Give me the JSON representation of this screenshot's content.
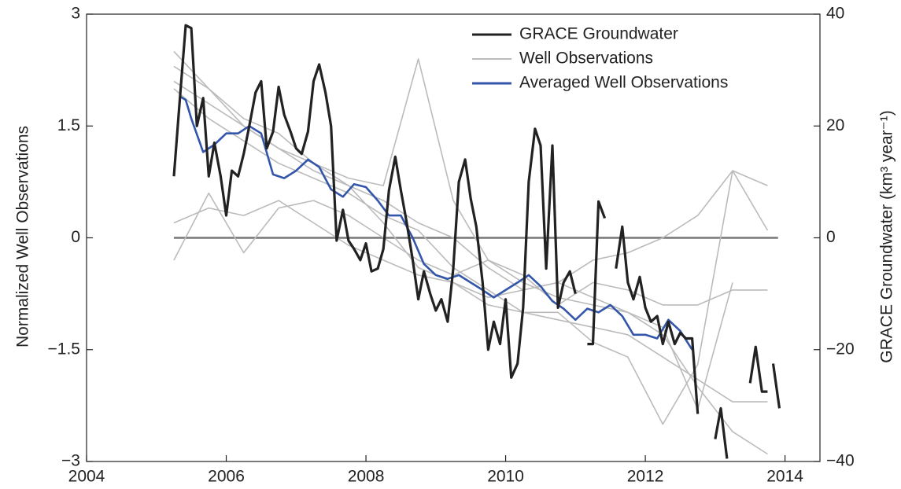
{
  "chart_data": {
    "type": "line",
    "xlim": [
      2004,
      2014.5
    ],
    "xticks": [
      2004,
      2006,
      2008,
      2010,
      2012,
      2014
    ],
    "ylim": [
      -3,
      3
    ],
    "yticks": [
      3,
      1.5,
      0,
      {
        "value": -1.5,
        "label": "−1.5"
      },
      {
        "value": -3,
        "label": "−3"
      }
    ],
    "y2lim": [
      -40,
      40
    ],
    "y2ticks": [
      40,
      20,
      0,
      {
        "value": -20,
        "label": "−20"
      },
      {
        "value": -40,
        "label": "−40"
      }
    ],
    "ylabel": "Normalized Well Observations",
    "y2label": "GRACE Groundwater (km³ year⁻¹)",
    "reference_line": {
      "y": 0,
      "color": "#777",
      "x": [
        2005.25,
        2013.9
      ]
    },
    "legend": "upper right",
    "series": [
      {
        "name": "GRACE Groundwater",
        "color": "#222222",
        "axis": "y2",
        "x": [
          2005.25,
          2005.33,
          2005.42,
          2005.5,
          2005.58,
          2005.67,
          2005.75,
          2005.83,
          2005.92,
          2006.0,
          2006.08,
          2006.17,
          2006.25,
          2006.33,
          2006.42,
          2006.5,
          2006.58,
          2006.67,
          2006.75,
          2006.83,
          2006.92,
          2007.0,
          2007.08,
          2007.17,
          2007.25,
          2007.33,
          2007.42,
          2007.5,
          2007.58,
          2007.67,
          2007.75,
          2007.83,
          2007.92,
          2008.0,
          2008.08,
          2008.17,
          2008.25,
          2008.33,
          2008.42,
          2008.5,
          2008.58,
          2008.67,
          2008.75,
          2008.83,
          2008.92,
          2009.0,
          2009.08,
          2009.17,
          2009.25,
          2009.33,
          2009.42,
          2009.5,
          2009.58,
          2009.67,
          2009.75,
          2009.83,
          2009.92,
          2010.0,
          2010.08,
          2010.17,
          2010.25,
          2010.33,
          2010.42,
          2010.5,
          2010.58,
          2010.67,
          2010.75,
          2010.83,
          2010.92,
          2011.0,
          2011.08,
          2011.17,
          2011.25,
          2011.33,
          2011.42,
          2011.5,
          2011.58,
          2011.67,
          2011.75,
          2011.83,
          2011.92,
          2012.0,
          2012.08,
          2012.17,
          2012.25,
          2012.33,
          2012.42,
          2012.5,
          2012.58,
          2012.67,
          2012.75,
          2012.88,
          2013.0,
          2013.08,
          2013.17,
          2013.33,
          2013.5,
          2013.58,
          2013.67,
          2013.75,
          2013.79,
          2013.83,
          2013.92
        ],
        "values": [
          11,
          24,
          38,
          37.5,
          20,
          25,
          11,
          17,
          11,
          4,
          12,
          11,
          15,
          20,
          26,
          28,
          16,
          19,
          27,
          22,
          19,
          16,
          15,
          19,
          28,
          31,
          26,
          20,
          -0.5,
          5,
          -0.5,
          -2,
          -4,
          -1,
          -6,
          -5.5,
          -2,
          8.5,
          14.5,
          8.5,
          3,
          -4,
          -11,
          -6,
          -10,
          -13,
          -11,
          -15,
          -5.5,
          10,
          14,
          7,
          2,
          -8,
          -20,
          -15,
          -19,
          -11,
          -25,
          -22.5,
          -12.5,
          10,
          19.5,
          16.5,
          -5.5,
          16.5,
          -12.5,
          -8,
          -6,
          -10,
          null,
          -19,
          -19,
          6.5,
          3.5,
          null,
          -5.5,
          2,
          -8,
          -11,
          -7,
          -12.5,
          -15,
          -14,
          -19,
          -15,
          -19,
          -17,
          -18,
          -18,
          -31.5,
          null,
          -36,
          -30.5,
          -39.5,
          null,
          -26,
          -19.5,
          -27.5,
          -27.5,
          null,
          -22.5,
          -30.5
        ]
      },
      {
        "name": "Well Observations",
        "color": "#bbbbbb",
        "x": [
          2005.25,
          2005.75,
          2006.25,
          2006.75,
          2007.25,
          2007.75,
          2008.25,
          2008.75,
          2009.25,
          2009.75,
          2010.25,
          2010.75,
          2011.25,
          2011.75,
          2012.25,
          2012.75,
          2013.25,
          2013.75
        ],
        "values": [
          [
            2.3,
            2.0,
            1.5,
            1.2,
            1.0,
            0.8,
            0.7,
            2.4,
            0.5,
            -0.3,
            -0.6,
            -0.8,
            -0.9,
            -1.0,
            -1.3,
            -2.0,
            -2.6,
            -2.9
          ],
          [
            0.2,
            0.4,
            0.3,
            0.5,
            0.2,
            -0.1,
            -0.3,
            -0.5,
            -0.6,
            -0.8,
            -0.7,
            -0.6,
            -0.3,
            -0.2,
            0.0,
            0.3,
            0.9,
            0.7
          ],
          [
            2.0,
            1.6,
            1.3,
            1.0,
            0.8,
            0.6,
            0.3,
            0.1,
            -0.4,
            -0.7,
            -1.0,
            -1.1,
            -1.2,
            -1.3,
            -1.6,
            -1.9,
            -2.2,
            -2.2
          ],
          [
            -0.3,
            0.6,
            -0.2,
            0.4,
            0.5,
            0.3,
            0.0,
            -0.3,
            -0.5,
            -0.3,
            -0.5,
            -0.9,
            -0.6,
            -0.7,
            -0.9,
            -0.9,
            -0.7,
            -0.7
          ],
          [
            2.1,
            1.8,
            1.5,
            1.2,
            0.9,
            0.7,
            0.2,
            -0.4,
            -0.6,
            -0.9,
            -1.0,
            -1.0,
            -1.4,
            -1.6,
            -2.5,
            -1.7,
            0.9,
            0.1
          ],
          [
            2.5,
            2.0,
            1.6,
            1.4,
            1.0,
            0.7,
            0.5,
            0.2,
            0.0,
            -0.4,
            -0.7,
            -0.6,
            -0.8,
            -1.0,
            -1.2,
            -2.3,
            -0.6,
            null
          ]
        ]
      },
      {
        "name": "Averaged Well Observations",
        "color": "#3355aa",
        "x": [
          2005.33,
          2005.42,
          2005.5,
          2005.67,
          2005.83,
          2006.0,
          2006.17,
          2006.33,
          2006.5,
          2006.67,
          2006.83,
          2007.0,
          2007.17,
          2007.33,
          2007.5,
          2007.67,
          2007.83,
          2008.0,
          2008.17,
          2008.33,
          2008.5,
          2008.67,
          2008.83,
          2009.0,
          2009.17,
          2009.33,
          2009.5,
          2009.67,
          2009.83,
          2010.0,
          2010.17,
          2010.33,
          2010.5,
          2010.67,
          2010.83,
          2011.0,
          2011.17,
          2011.33,
          2011.5,
          2011.67,
          2011.83,
          2012.0,
          2012.17,
          2012.33,
          2012.5,
          2012.67
        ],
        "values": [
          1.9,
          1.85,
          1.6,
          1.15,
          1.25,
          1.4,
          1.4,
          1.5,
          1.4,
          0.85,
          0.8,
          0.9,
          1.05,
          0.95,
          0.65,
          0.55,
          0.72,
          0.68,
          0.5,
          0.3,
          0.3,
          0.0,
          -0.35,
          -0.5,
          -0.55,
          -0.5,
          -0.6,
          -0.7,
          -0.8,
          -0.7,
          -0.6,
          -0.5,
          -0.65,
          -0.85,
          -0.95,
          -1.1,
          -0.95,
          -1.0,
          -0.9,
          -1.05,
          -1.3,
          -1.3,
          -1.35,
          -1.1,
          -1.25,
          -1.5
        ]
      }
    ]
  }
}
